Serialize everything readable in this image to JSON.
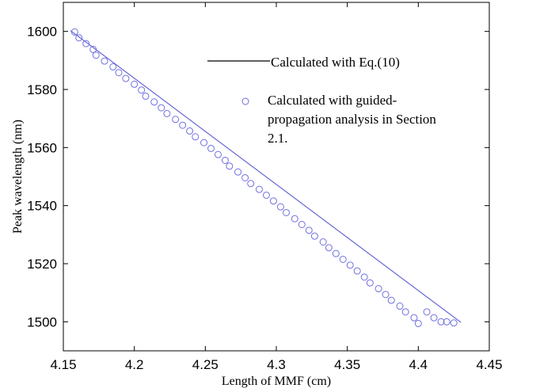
{
  "chart_data": {
    "type": "line",
    "xlabel": "Length of MMF (cm)",
    "ylabel": "Peak wavelength (nm)",
    "xlim": [
      4.15,
      4.45
    ],
    "ylim": [
      1490,
      1610
    ],
    "x_ticks": [
      "4.15",
      "4.2",
      "4.25",
      "4.3",
      "4.35",
      "4.4",
      "4.45"
    ],
    "y_ticks": [
      "1500",
      "1520",
      "1540",
      "1560",
      "1580",
      "1600"
    ],
    "x_tick_values": [
      4.15,
      4.2,
      4.25,
      4.3,
      4.35,
      4.4,
      4.45
    ],
    "y_tick_values": [
      1500,
      1520,
      1540,
      1560,
      1580,
      1600
    ],
    "legend_position": "top-right",
    "legend": [
      "Calculated with  Eq.(10)",
      [
        "Calculated with guided-",
        "propagation analysis in Section",
        "2.1."
      ]
    ],
    "series": [
      {
        "name": "Calculated with  Eq.(10)",
        "style": "line",
        "color": "#5a5ad6",
        "x": [
          4.155,
          4.43
        ],
        "y": [
          1600.3,
          1499.8
        ]
      },
      {
        "name": "Calculated with guided-propagation analysis in Section 2.1.",
        "style": "marker-circle",
        "color": "#7070e0",
        "x": [
          4.158,
          4.161,
          4.166,
          4.171,
          4.173,
          4.179,
          4.185,
          4.189,
          4.194,
          4.2,
          4.205,
          4.208,
          4.214,
          4.219,
          4.223,
          4.229,
          4.234,
          4.239,
          4.243,
          4.249,
          4.254,
          4.259,
          4.264,
          4.267,
          4.273,
          4.278,
          4.282,
          4.288,
          4.293,
          4.298,
          4.303,
          4.307,
          4.313,
          4.318,
          4.323,
          4.327,
          4.333,
          4.337,
          4.342,
          4.347,
          4.352,
          4.357,
          4.362,
          4.366,
          4.372,
          4.377,
          4.381,
          4.387,
          4.391,
          4.397,
          4.4,
          4.406,
          4.411,
          4.416,
          4.42,
          4.425
        ],
        "y": [
          1599.8,
          1597.8,
          1595.8,
          1593.8,
          1591.8,
          1589.8,
          1587.8,
          1585.8,
          1583.8,
          1581.8,
          1579.8,
          1577.7,
          1575.7,
          1573.7,
          1571.7,
          1569.7,
          1567.7,
          1565.7,
          1563.7,
          1561.7,
          1559.7,
          1557.6,
          1555.6,
          1553.6,
          1551.6,
          1549.6,
          1547.6,
          1545.6,
          1543.6,
          1541.6,
          1539.6,
          1537.6,
          1535.5,
          1533.5,
          1531.5,
          1529.5,
          1527.5,
          1525.5,
          1523.5,
          1521.5,
          1519.5,
          1517.5,
          1515.4,
          1513.4,
          1511.4,
          1509.4,
          1507.4,
          1505.4,
          1503.4,
          1501.4,
          1499.4,
          1503.4,
          1501.4,
          1500.0,
          1500.0,
          1499.6
        ]
      }
    ]
  }
}
